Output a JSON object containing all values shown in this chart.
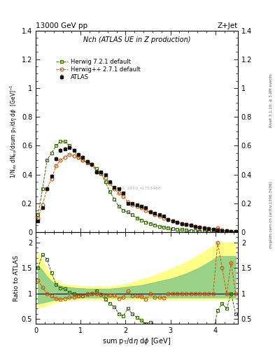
{
  "title_left": "13000 GeV pp",
  "title_right": "Z+Jet",
  "plot_title": "Nch (ATLAS UE in Z production)",
  "ylabel_main": "1/N$_{ev}$ dN$_{ev}$/dsum p$_T$/dη dφ  [GeV]$^{-1}$",
  "ylabel_ratio": "Ratio to ATLAS",
  "xlabel": "sum p$_T$/dη dφ [GeV]",
  "right_label1": "Rivet 3.1.10; ≥ 3.2M events",
  "right_label2": "mcplots.cern.ch [arXiv:1306.3436]",
  "watermark": "ATLAS_2019_I1753466",
  "atlas_x": [
    0.05,
    0.15,
    0.25,
    0.35,
    0.45,
    0.55,
    0.65,
    0.75,
    0.85,
    0.95,
    1.05,
    1.15,
    1.25,
    1.35,
    1.45,
    1.55,
    1.65,
    1.75,
    1.85,
    1.95,
    2.05,
    2.15,
    2.25,
    2.35,
    2.45,
    2.55,
    2.65,
    2.75,
    2.85,
    2.95,
    3.05,
    3.15,
    3.25,
    3.35,
    3.45,
    3.55,
    3.65,
    3.75,
    3.85,
    3.95,
    4.05,
    4.15,
    4.25,
    4.35,
    4.45
  ],
  "atlas_y": [
    0.08,
    0.17,
    0.3,
    0.39,
    0.51,
    0.57,
    0.58,
    0.59,
    0.57,
    0.54,
    0.52,
    0.49,
    0.47,
    0.42,
    0.42,
    0.4,
    0.35,
    0.31,
    0.3,
    0.27,
    0.2,
    0.2,
    0.19,
    0.18,
    0.17,
    0.14,
    0.13,
    0.12,
    0.11,
    0.09,
    0.08,
    0.07,
    0.06,
    0.055,
    0.05,
    0.04,
    0.035,
    0.03,
    0.025,
    0.02,
    0.015,
    0.01,
    0.01,
    0.005,
    0.005
  ],
  "atlas_yerr": [
    0.005,
    0.008,
    0.01,
    0.012,
    0.014,
    0.014,
    0.014,
    0.013,
    0.013,
    0.013,
    0.012,
    0.012,
    0.011,
    0.01,
    0.01,
    0.009,
    0.009,
    0.008,
    0.008,
    0.007,
    0.006,
    0.006,
    0.006,
    0.005,
    0.005,
    0.005,
    0.005,
    0.004,
    0.004,
    0.004,
    0.003,
    0.003,
    0.003,
    0.003,
    0.002,
    0.002,
    0.002,
    0.002,
    0.002,
    0.001,
    0.001,
    0.001,
    0.001,
    0.001,
    0.001
  ],
  "hpp_x": [
    0.05,
    0.15,
    0.25,
    0.35,
    0.45,
    0.55,
    0.65,
    0.75,
    0.85,
    0.95,
    1.05,
    1.15,
    1.25,
    1.35,
    1.45,
    1.55,
    1.65,
    1.75,
    1.85,
    1.95,
    2.05,
    2.15,
    2.25,
    2.35,
    2.45,
    2.55,
    2.65,
    2.75,
    2.85,
    2.95,
    3.05,
    3.15,
    3.25,
    3.35,
    3.45,
    3.55,
    3.65,
    3.75,
    3.85,
    3.95,
    4.05,
    4.15,
    4.25,
    4.35,
    4.45
  ],
  "hpp_y": [
    0.1,
    0.19,
    0.3,
    0.37,
    0.46,
    0.5,
    0.52,
    0.54,
    0.53,
    0.52,
    0.5,
    0.49,
    0.47,
    0.42,
    0.41,
    0.38,
    0.34,
    0.3,
    0.27,
    0.25,
    0.21,
    0.19,
    0.18,
    0.17,
    0.15,
    0.14,
    0.12,
    0.11,
    0.1,
    0.09,
    0.08,
    0.07,
    0.06,
    0.055,
    0.05,
    0.04,
    0.035,
    0.03,
    0.025,
    0.02,
    0.03,
    0.015,
    0.01,
    0.008,
    0.005
  ],
  "h721_x": [
    0.05,
    0.15,
    0.25,
    0.35,
    0.45,
    0.55,
    0.65,
    0.75,
    0.85,
    0.95,
    1.05,
    1.15,
    1.25,
    1.35,
    1.45,
    1.55,
    1.65,
    1.75,
    1.85,
    1.95,
    2.05,
    2.15,
    2.25,
    2.35,
    2.45,
    2.55,
    2.65,
    2.75,
    2.85,
    2.95,
    3.05,
    3.15,
    3.25,
    3.35,
    3.45,
    3.55,
    3.65,
    3.75,
    3.85,
    3.95,
    4.05,
    4.15,
    4.25,
    4.35,
    4.45
  ],
  "h721_y": [
    0.12,
    0.3,
    0.5,
    0.55,
    0.6,
    0.63,
    0.63,
    0.6,
    0.57,
    0.52,
    0.5,
    0.48,
    0.47,
    0.44,
    0.41,
    0.35,
    0.28,
    0.23,
    0.18,
    0.15,
    0.14,
    0.12,
    0.1,
    0.085,
    0.07,
    0.06,
    0.05,
    0.04,
    0.035,
    0.03,
    0.025,
    0.02,
    0.018,
    0.015,
    0.012,
    0.01,
    0.008,
    0.007,
    0.006,
    0.005,
    0.01,
    0.008,
    0.007,
    0.005,
    0.003
  ],
  "hpp_color": "#cc5500",
  "h721_color": "#336600",
  "atlas_color": "#111111",
  "ylim_main": [
    0.0,
    1.4
  ],
  "ylim_ratio": [
    0.4,
    2.2
  ],
  "xlim": [
    0.0,
    4.5
  ],
  "yticks_main": [
    0.0,
    0.2,
    0.4,
    0.6,
    0.8,
    1.0,
    1.2,
    1.4
  ],
  "yticks_ratio": [
    0.5,
    1.0,
    1.5,
    2.0
  ],
  "xticks": [
    0,
    1,
    2,
    3,
    4
  ],
  "ratio_hpp": [
    1.25,
    1.12,
    1.0,
    0.95,
    0.9,
    0.88,
    0.9,
    0.92,
    0.93,
    0.96,
    0.96,
    1.0,
    1.0,
    1.0,
    0.98,
    0.95,
    0.97,
    0.97,
    0.9,
    0.93,
    1.05,
    0.95,
    0.95,
    0.94,
    0.88,
    1.0,
    0.92,
    0.92,
    0.91,
    1.0,
    1.0,
    1.0,
    1.0,
    1.0,
    1.0,
    1.0,
    1.0,
    1.0,
    1.0,
    1.0,
    2.0,
    1.5,
    1.0,
    1.6,
    1.0
  ],
  "ratio_h721": [
    1.5,
    1.76,
    1.67,
    1.41,
    1.18,
    1.11,
    1.09,
    1.02,
    1.0,
    0.96,
    0.96,
    0.98,
    1.0,
    1.05,
    0.98,
    0.88,
    0.8,
    0.74,
    0.6,
    0.56,
    0.7,
    0.6,
    0.53,
    0.47,
    0.41,
    0.43,
    0.38,
    0.33,
    0.32,
    0.33,
    0.31,
    0.29,
    0.3,
    0.27,
    0.24,
    0.25,
    0.23,
    0.23,
    0.24,
    0.25,
    0.67,
    0.8,
    0.7,
    1.0,
    0.6
  ],
  "band_x": [
    0.05,
    0.15,
    0.25,
    0.35,
    0.45,
    0.55,
    0.65,
    0.75,
    0.85,
    0.95,
    1.05,
    1.15,
    1.25,
    1.35,
    1.45,
    1.55,
    1.65,
    1.75,
    1.85,
    1.95,
    2.05,
    2.15,
    2.25,
    2.35,
    2.45,
    2.55,
    2.65,
    2.75,
    2.85,
    2.95,
    3.05,
    3.15,
    3.25,
    3.35,
    3.45,
    3.55,
    3.65,
    3.75,
    3.85,
    3.95,
    4.05,
    4.15,
    4.25,
    4.35,
    4.45
  ],
  "band_yellow_lo": [
    0.72,
    0.74,
    0.77,
    0.8,
    0.83,
    0.85,
    0.86,
    0.87,
    0.88,
    0.88,
    0.88,
    0.88,
    0.88,
    0.88,
    0.88,
    0.88,
    0.88,
    0.88,
    0.88,
    0.88,
    0.88,
    0.88,
    0.88,
    0.88,
    0.88,
    0.88,
    0.88,
    0.88,
    0.88,
    0.88,
    0.88,
    0.88,
    0.88,
    0.88,
    0.88,
    0.88,
    0.88,
    0.88,
    0.88,
    0.88,
    0.88,
    0.88,
    0.88,
    0.88,
    0.88
  ],
  "band_yellow_hi": [
    1.8,
    1.65,
    1.48,
    1.36,
    1.25,
    1.2,
    1.18,
    1.17,
    1.16,
    1.15,
    1.14,
    1.14,
    1.14,
    1.14,
    1.14,
    1.14,
    1.14,
    1.15,
    1.16,
    1.18,
    1.2,
    1.22,
    1.25,
    1.28,
    1.3,
    1.33,
    1.36,
    1.4,
    1.43,
    1.47,
    1.5,
    1.54,
    1.58,
    1.62,
    1.67,
    1.72,
    1.77,
    1.82,
    1.88,
    1.94,
    2.0,
    2.0,
    2.0,
    2.0,
    2.0
  ],
  "band_green_lo": [
    0.8,
    0.82,
    0.84,
    0.86,
    0.88,
    0.89,
    0.9,
    0.91,
    0.91,
    0.92,
    0.92,
    0.92,
    0.92,
    0.92,
    0.92,
    0.92,
    0.92,
    0.92,
    0.92,
    0.92,
    0.92,
    0.92,
    0.92,
    0.92,
    0.92,
    0.92,
    0.92,
    0.92,
    0.92,
    0.92,
    0.92,
    0.92,
    0.92,
    0.92,
    0.92,
    0.92,
    0.92,
    0.92,
    0.92,
    0.92,
    0.92,
    0.92,
    0.92,
    0.92,
    0.92
  ],
  "band_green_hi": [
    1.55,
    1.45,
    1.33,
    1.24,
    1.18,
    1.15,
    1.13,
    1.12,
    1.11,
    1.1,
    1.1,
    1.09,
    1.09,
    1.09,
    1.09,
    1.09,
    1.09,
    1.1,
    1.11,
    1.12,
    1.13,
    1.14,
    1.15,
    1.16,
    1.18,
    1.2,
    1.22,
    1.24,
    1.26,
    1.28,
    1.3,
    1.33,
    1.36,
    1.39,
    1.43,
    1.47,
    1.51,
    1.56,
    1.61,
    1.67,
    1.73,
    1.73,
    1.73,
    1.73,
    1.73
  ]
}
